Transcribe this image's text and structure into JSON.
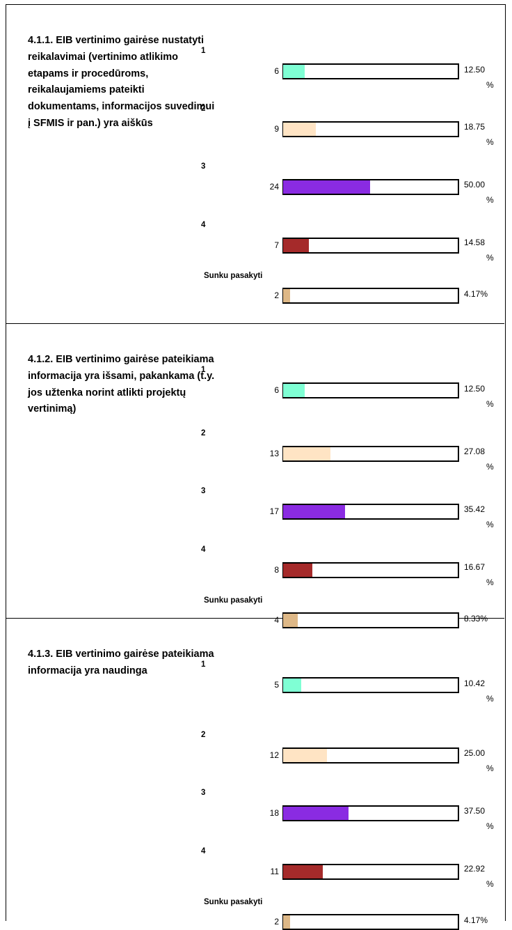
{
  "chart_data": [
    {
      "type": "bar",
      "question": "4.1.1. EIB vertinimo gairėse nustatyti reikalavimai (vertinimo atlikimo etapams ir procedūroms, reikalaujamiems pateikti dokumentams, informacijos suvedimui į SFMIS ir pan.) yra aiškūs",
      "categories": [
        "1",
        "2",
        "3",
        "4",
        "Sunku pasakyti"
      ],
      "values": [
        6,
        9,
        24,
        7,
        2
      ],
      "percent_labels": [
        "12.50 %",
        "18.75 %",
        "50.00 %",
        "14.58 %",
        "4.17%"
      ]
    },
    {
      "type": "bar",
      "question": "4.1.2. EIB vertinimo gairėse pateikiama informacija yra išsami, pakankama (t.y. jos užtenka norint atlikti projektų vertinimą)",
      "categories": [
        "1",
        "2",
        "3",
        "4",
        "Sunku pasakyti"
      ],
      "values": [
        6,
        13,
        17,
        8,
        4
      ],
      "percent_labels": [
        "12.50 %",
        "27.08 %",
        "35.42 %",
        "16.67 %",
        "8.33%"
      ]
    },
    {
      "type": "bar",
      "question": "4.1.3. EIB vertinimo gairėse pateikiama informacija yra naudinga",
      "categories": [
        "1",
        "2",
        "3",
        "4",
        "Sunku pasakyti"
      ],
      "values": [
        5,
        12,
        18,
        11,
        2
      ],
      "percent_labels": [
        "10.42 %",
        "25.00 %",
        "37.50 %",
        "22.92 %",
        "4.17%"
      ]
    }
  ],
  "scale_max": 48,
  "colors": [
    "#7fffd4",
    "#ffe4c4",
    "#8a2be2",
    "#a52a2a",
    "#deb887"
  ]
}
